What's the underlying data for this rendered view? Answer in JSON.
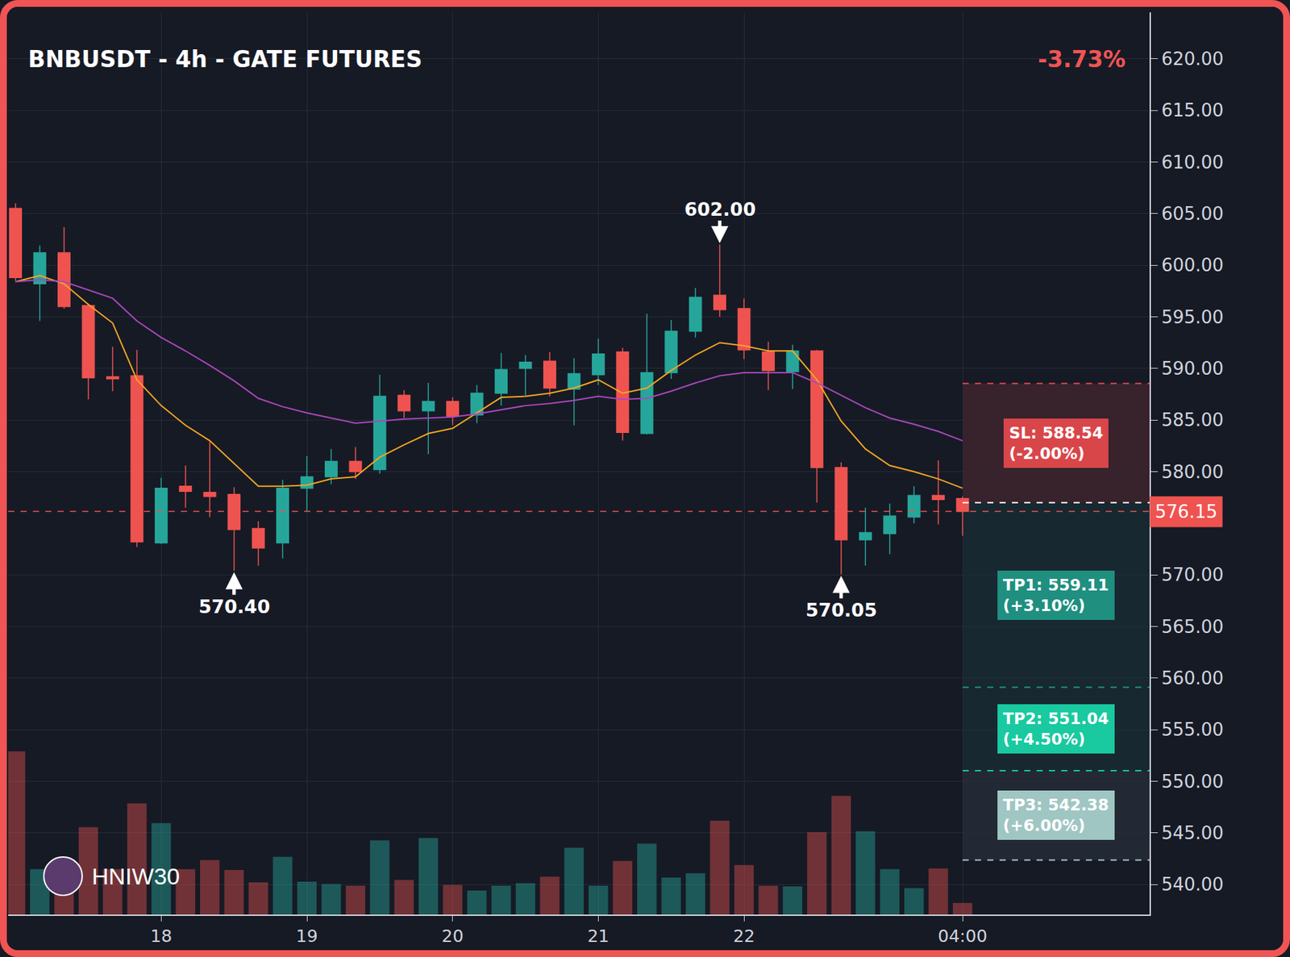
{
  "chart_data": {
    "type": "candlestick",
    "title": "BNBUSDT - 4h - GATE FUTURES",
    "change_label": "-3.73%",
    "watermark": "HNIW30",
    "categories": [
      null,
      null,
      null,
      null,
      null,
      null,
      "18",
      null,
      null,
      null,
      null,
      null,
      "19",
      null,
      null,
      null,
      null,
      null,
      "20",
      null,
      null,
      null,
      null,
      null,
      "21",
      null,
      null,
      null,
      null,
      null,
      "22",
      null,
      null,
      null,
      null,
      null,
      null,
      null,
      null,
      "04:00"
    ],
    "open": [
      605.5,
      598.2,
      601.2,
      596.1,
      589.2,
      589.3,
      573.1,
      578.6,
      578.0,
      577.8,
      574.5,
      573.1,
      578.4,
      579.5,
      581.0,
      580.2,
      587.4,
      585.9,
      586.8,
      585.5,
      587.6,
      590.0,
      590.7,
      588.0,
      589.4,
      591.6,
      583.7,
      589.6,
      593.6,
      597.1,
      595.8,
      591.6,
      589.7,
      591.7,
      580.4,
      573.4,
      574.0,
      575.6,
      577.7,
      577.4
    ],
    "high": [
      606.0,
      601.9,
      603.7,
      596.3,
      592.1,
      591.8,
      579.4,
      580.6,
      582.9,
      578.5,
      575.2,
      579.2,
      581.5,
      582.2,
      582.4,
      589.4,
      587.9,
      588.6,
      587.2,
      588.4,
      591.5,
      591.3,
      591.6,
      591.0,
      592.9,
      592.0,
      595.3,
      594.7,
      597.8,
      602.0,
      596.8,
      592.6,
      592.3,
      591.8,
      580.9,
      576.5,
      576.9,
      578.6,
      581.1,
      577.6
    ],
    "low": [
      598.5,
      594.6,
      595.8,
      587.0,
      587.8,
      572.7,
      573.0,
      576.5,
      575.6,
      570.4,
      570.9,
      571.6,
      576.2,
      578.8,
      579.3,
      579.8,
      585.2,
      581.7,
      584.5,
      584.7,
      586.4,
      587.4,
      587.3,
      584.5,
      588.4,
      583.0,
      583.6,
      589.0,
      593.0,
      595.0,
      590.9,
      587.9,
      588.0,
      577.0,
      570.05,
      570.9,
      572.0,
      575.0,
      574.9,
      573.8
    ],
    "close": [
      598.8,
      601.2,
      596.0,
      589.1,
      589.0,
      573.2,
      578.4,
      578.1,
      577.6,
      574.4,
      572.6,
      578.4,
      579.5,
      581.0,
      580.0,
      587.3,
      585.9,
      586.8,
      585.4,
      587.6,
      589.9,
      590.6,
      588.1,
      589.5,
      591.4,
      583.8,
      589.6,
      593.6,
      596.9,
      595.7,
      591.8,
      589.8,
      591.7,
      580.4,
      573.4,
      574.1,
      575.7,
      577.7,
      577.3,
      576.15
    ],
    "series": [
      {
        "type": "line",
        "color": "#f5a623",
        "values": [
          598.4,
          599.0,
          598.2,
          596.2,
          594.4,
          588.9,
          586.4,
          584.5,
          583.0,
          580.8,
          578.6,
          578.6,
          578.7,
          579.3,
          579.5,
          581.4,
          582.6,
          583.7,
          584.2,
          585.7,
          587.2,
          587.3,
          587.6,
          588.1,
          588.9,
          587.6,
          588.1,
          589.8,
          591.3,
          592.5,
          592.2,
          591.7,
          591.7,
          588.9,
          584.9,
          582.2,
          580.6,
          580.0,
          579.3,
          578.4
        ]
      },
      {
        "type": "line",
        "color": "#ab47bc",
        "values": [
          598.4,
          598.6,
          598.4,
          597.6,
          596.8,
          594.6,
          593.0,
          591.7,
          590.3,
          588.8,
          587.1,
          586.3,
          585.7,
          585.2,
          584.7,
          584.9,
          585.1,
          585.2,
          585.3,
          585.6,
          586.0,
          586.4,
          586.6,
          586.9,
          587.3,
          587.0,
          587.1,
          587.8,
          588.6,
          589.3,
          589.6,
          589.6,
          589.6,
          588.6,
          587.4,
          586.2,
          585.2,
          584.6,
          583.9,
          583.0
        ]
      },
      {
        "type": "bar",
        "axis": "y2",
        "values": [
          198,
          55,
          55,
          106,
          55,
          135,
          111,
          55,
          66,
          54,
          39,
          70,
          40,
          37,
          35,
          90,
          42,
          93,
          36,
          29,
          35,
          38,
          46,
          81,
          35,
          65,
          86,
          45,
          50,
          114,
          60,
          35,
          34,
          100,
          144,
          101,
          55,
          32,
          56,
          14
        ]
      }
    ],
    "xlim": [
      -0.3,
      46.7
    ],
    "ylim": [
      537.1,
      624.5
    ],
    "yticks": [
      {
        "value": 540,
        "label": "540.00"
      },
      {
        "value": 545,
        "label": "545.00"
      },
      {
        "value": 550,
        "label": "550.00"
      },
      {
        "value": 555,
        "label": "555.00"
      },
      {
        "value": 560,
        "label": "560.00"
      },
      {
        "value": 565,
        "label": "565.00"
      },
      {
        "value": 570,
        "label": "570.00"
      },
      {
        "value": 580,
        "label": "580.00"
      },
      {
        "value": 585,
        "label": "585.00"
      },
      {
        "value": 590,
        "label": "590.00"
      },
      {
        "value": 595,
        "label": "595.00"
      },
      {
        "value": 600,
        "label": "600.00"
      },
      {
        "value": 605,
        "label": "605.00"
      },
      {
        "value": 610,
        "label": "610.00"
      },
      {
        "value": 615,
        "label": "615.00"
      },
      {
        "value": 620,
        "label": "620.00"
      }
    ],
    "y2lim": [
      0,
      1095
    ],
    "grid": true,
    "last_price": {
      "value": 576.15,
      "label": "576.15"
    },
    "entry": 577.0,
    "levels": [
      {
        "value": 588.54,
        "label": "SL: 588.54",
        "change_label": "(-2.00%)",
        "color": "#d9464a"
      },
      {
        "value": 559.11,
        "label": "TP1: 559.11",
        "change_label": "(+3.10%)",
        "color": "#1f8f80"
      },
      {
        "value": 551.04,
        "label": "TP2: 551.04",
        "change_label": "(+4.50%)",
        "color": "#19c9a0"
      },
      {
        "value": 542.38,
        "label": "TP3: 542.38",
        "change_label": "(+6.00%)",
        "color": "#9fc6c3"
      }
    ],
    "annotations": [
      {
        "x": 29,
        "y": 602.0,
        "text": "602.00",
        "position": "above"
      },
      {
        "x": 9,
        "y": 570.4,
        "text": "570.40",
        "position": "below"
      },
      {
        "x": 34,
        "y": 570.05,
        "text": "570.05",
        "position": "below"
      }
    ]
  }
}
